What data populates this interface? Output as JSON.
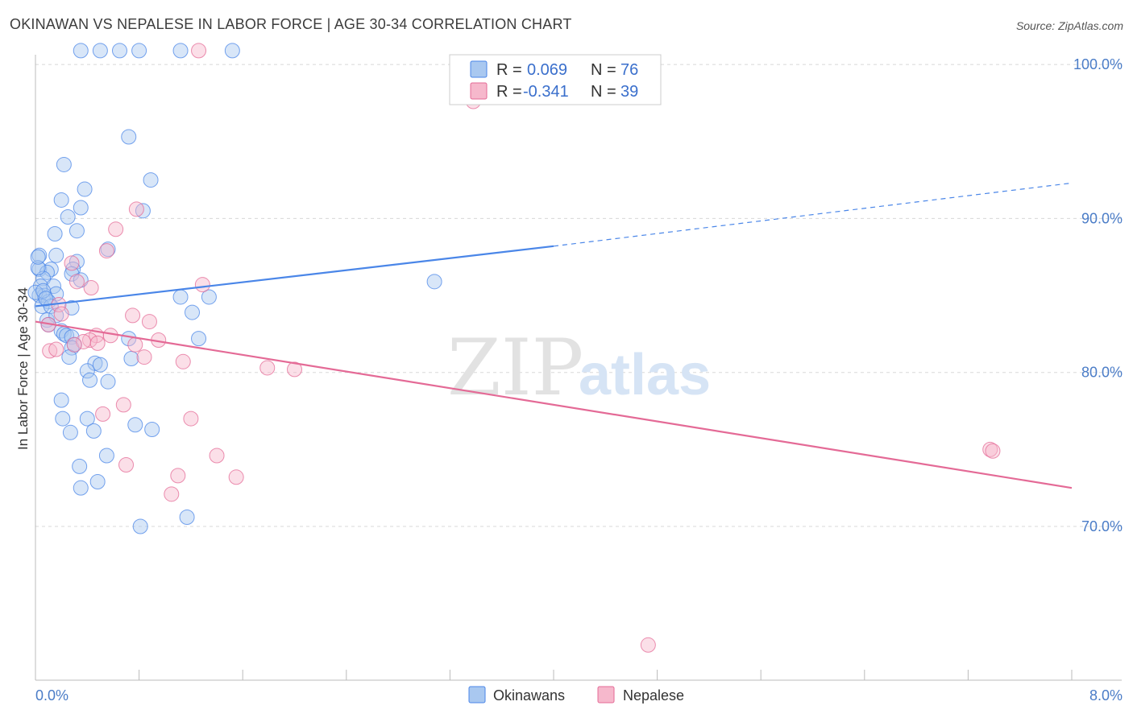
{
  "title": "OKINAWAN VS NEPALESE IN LABOR FORCE | AGE 30-34 CORRELATION CHART",
  "source": "Source: ZipAtlas.com",
  "watermark": {
    "zip": "ZIP",
    "atlas": "atlas"
  },
  "colors": {
    "blue": "#4a86e8",
    "blue_fill": "#a9c8f0",
    "pink": "#e46a96",
    "pink_fill": "#f6b8cc",
    "tick_text": "#4a7cc7",
    "grid": "#d8d8d8"
  },
  "chart_data": {
    "type": "scatter",
    "title": "OKINAWAN VS NEPALESE IN LABOR FORCE | AGE 30-34 CORRELATION CHART",
    "xlabel": "",
    "ylabel": "In Labor Force | Age 30-34",
    "xlim": [
      0.0,
      8.0
    ],
    "ylim": [
      59.5,
      101.5
    ],
    "x_tick_labels": [
      "0.0%",
      "8.0%"
    ],
    "y_ticks": [
      70,
      80,
      90,
      100
    ],
    "y_tick_labels": [
      "70.0%",
      "80.0%",
      "90.0%",
      "100.0%"
    ],
    "legend_stats": [
      {
        "r_label": "R =",
        "r_value": "0.069",
        "n_label": "N =",
        "n_value": "76"
      },
      {
        "r_label": "R =",
        "r_value": "-0.341",
        "n_label": "N =",
        "n_value": "39"
      }
    ],
    "series": [
      {
        "name": "Okinawans",
        "color": "#4a86e8",
        "trend": {
          "x0": 0.0,
          "y0": 84.3,
          "x1": 4.0,
          "y1": 88.2,
          "x_dash_end": 8.0,
          "y_dash_end": 92.3
        },
        "points": [
          [
            0.35,
            100.9
          ],
          [
            0.5,
            100.9
          ],
          [
            0.65,
            100.9
          ],
          [
            0.8,
            100.9
          ],
          [
            1.12,
            100.9
          ],
          [
            1.52,
            100.9
          ],
          [
            0.72,
            95.3
          ],
          [
            0.22,
            93.5
          ],
          [
            0.89,
            92.5
          ],
          [
            0.38,
            91.9
          ],
          [
            0.2,
            91.2
          ],
          [
            0.35,
            90.7
          ],
          [
            0.83,
            90.5
          ],
          [
            0.25,
            90.1
          ],
          [
            0.32,
            89.2
          ],
          [
            0.15,
            89.0
          ],
          [
            0.56,
            88.0
          ],
          [
            0.03,
            87.6
          ],
          [
            0.16,
            87.6
          ],
          [
            0.32,
            87.2
          ],
          [
            0.03,
            86.7
          ],
          [
            0.12,
            86.7
          ],
          [
            0.09,
            86.5
          ],
          [
            0.29,
            86.7
          ],
          [
            0.28,
            86.4
          ],
          [
            0.35,
            86.0
          ],
          [
            0.06,
            86.1
          ],
          [
            0.04,
            85.6
          ],
          [
            0.14,
            85.6
          ],
          [
            0.16,
            85.1
          ],
          [
            0.03,
            85.0
          ],
          [
            0.07,
            85.0
          ],
          [
            0.1,
            84.6
          ],
          [
            0.05,
            84.3
          ],
          [
            0.28,
            84.2
          ],
          [
            0.12,
            84.3
          ],
          [
            3.08,
            85.9
          ],
          [
            1.12,
            84.9
          ],
          [
            1.34,
            84.9
          ],
          [
            1.21,
            83.9
          ],
          [
            0.09,
            83.4
          ],
          [
            0.16,
            83.7
          ],
          [
            0.1,
            83.1
          ],
          [
            0.2,
            82.7
          ],
          [
            0.22,
            82.5
          ],
          [
            0.24,
            82.4
          ],
          [
            0.28,
            82.3
          ],
          [
            0.72,
            82.2
          ],
          [
            1.26,
            82.2
          ],
          [
            0.3,
            81.8
          ],
          [
            0.28,
            81.6
          ],
          [
            0.26,
            81.0
          ],
          [
            0.74,
            80.9
          ],
          [
            0.46,
            80.6
          ],
          [
            0.5,
            80.5
          ],
          [
            0.4,
            80.1
          ],
          [
            0.42,
            79.5
          ],
          [
            0.56,
            79.4
          ],
          [
            0.2,
            78.2
          ],
          [
            0.21,
            77.0
          ],
          [
            0.4,
            77.0
          ],
          [
            0.77,
            76.6
          ],
          [
            0.27,
            76.1
          ],
          [
            0.45,
            76.2
          ],
          [
            0.9,
            76.3
          ],
          [
            0.55,
            74.6
          ],
          [
            0.34,
            73.9
          ],
          [
            0.48,
            72.9
          ],
          [
            0.35,
            72.5
          ],
          [
            1.17,
            70.6
          ],
          [
            0.81,
            70.0
          ],
          [
            0.0,
            85.2
          ],
          [
            0.02,
            86.8
          ],
          [
            0.06,
            85.3
          ],
          [
            0.02,
            87.5
          ],
          [
            0.08,
            84.8
          ]
        ]
      },
      {
        "name": "Nepalese",
        "color": "#e46a96",
        "trend": {
          "x0": 0.0,
          "y0": 83.3,
          "x1": 8.0,
          "y1": 72.5
        },
        "points": [
          [
            1.26,
            100.9
          ],
          [
            3.38,
            97.6
          ],
          [
            0.78,
            90.6
          ],
          [
            0.62,
            89.3
          ],
          [
            0.55,
            87.9
          ],
          [
            0.28,
            87.1
          ],
          [
            0.32,
            85.9
          ],
          [
            0.43,
            85.5
          ],
          [
            1.29,
            85.7
          ],
          [
            0.18,
            84.4
          ],
          [
            0.2,
            83.8
          ],
          [
            0.75,
            83.7
          ],
          [
            0.88,
            83.3
          ],
          [
            0.1,
            83.1
          ],
          [
            0.47,
            82.4
          ],
          [
            0.58,
            82.4
          ],
          [
            0.95,
            82.1
          ],
          [
            0.42,
            82.1
          ],
          [
            0.37,
            82.0
          ],
          [
            0.48,
            81.9
          ],
          [
            0.77,
            81.8
          ],
          [
            0.3,
            81.8
          ],
          [
            0.11,
            81.4
          ],
          [
            0.84,
            81.0
          ],
          [
            1.14,
            80.7
          ],
          [
            1.79,
            80.3
          ],
          [
            2.0,
            80.2
          ],
          [
            0.68,
            77.9
          ],
          [
            0.52,
            77.3
          ],
          [
            1.2,
            77.0
          ],
          [
            7.37,
            75.0
          ],
          [
            7.39,
            74.9
          ],
          [
            1.4,
            74.6
          ],
          [
            0.7,
            74.0
          ],
          [
            1.1,
            73.3
          ],
          [
            1.55,
            73.2
          ],
          [
            1.05,
            72.1
          ],
          [
            4.73,
            62.3
          ],
          [
            0.16,
            81.5
          ]
        ]
      }
    ]
  }
}
